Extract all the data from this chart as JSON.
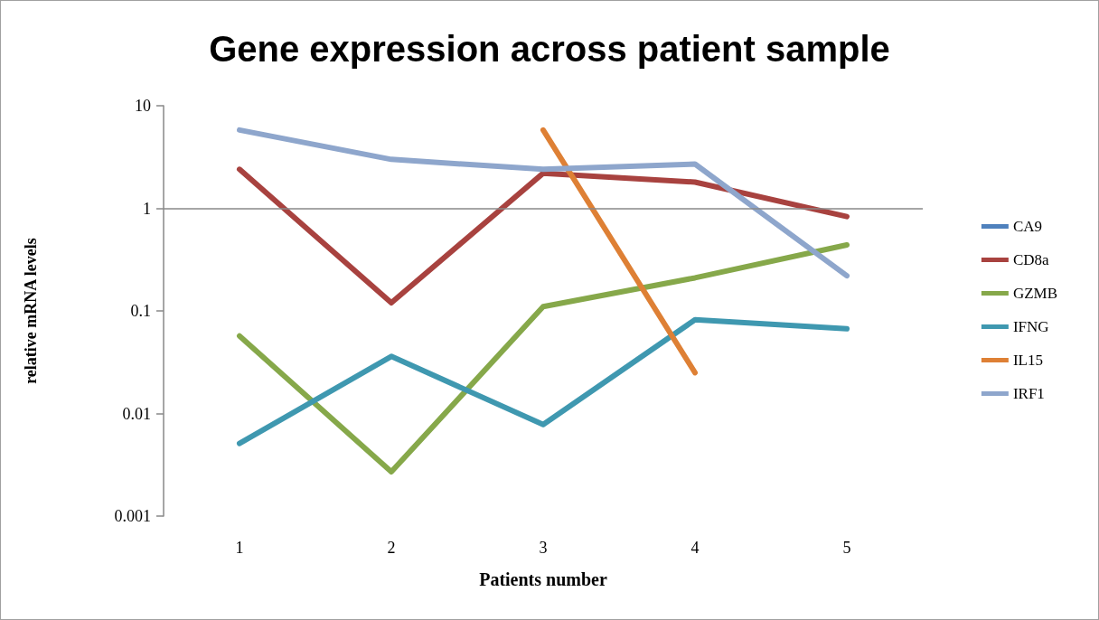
{
  "chart_data": {
    "type": "line",
    "title": "Gene expression across patient sample",
    "xlabel": "Patients number",
    "ylabel": "relative mRNA levels",
    "categories": [
      "1",
      "2",
      "3",
      "4",
      "5"
    ],
    "series": [
      {
        "name": "CA9",
        "color": "#4f81bd",
        "values": [
          null,
          null,
          null,
          null,
          null
        ]
      },
      {
        "name": "CD8a",
        "color": "#a8423f",
        "values": [
          2.4,
          0.12,
          2.2,
          1.8,
          0.83
        ]
      },
      {
        "name": "GZMB",
        "color": "#86a84a",
        "values": [
          0.057,
          0.0027,
          0.11,
          0.21,
          0.44
        ]
      },
      {
        "name": "IFNG",
        "color": "#3f98b0",
        "values": [
          0.0051,
          0.036,
          0.0078,
          0.082,
          0.067
        ]
      },
      {
        "name": "IL15",
        "color": "#de8035",
        "values": [
          null,
          null,
          5.8,
          0.025,
          null
        ]
      },
      {
        "name": "IRF1",
        "color": "#8ea6cc",
        "values": [
          5.8,
          3.0,
          2.4,
          2.7,
          0.22
        ]
      }
    ],
    "ref_lines": [
      {
        "axis": "y",
        "value": 1,
        "color": "#888888",
        "line_style": "solid"
      }
    ],
    "log": "y",
    "ylim": [
      0.001,
      10
    ],
    "yticks": [
      0.001,
      0.01,
      0.1,
      1,
      10
    ],
    "grid": false,
    "legend": "right",
    "marker": "none",
    "line_style": "solid"
  }
}
